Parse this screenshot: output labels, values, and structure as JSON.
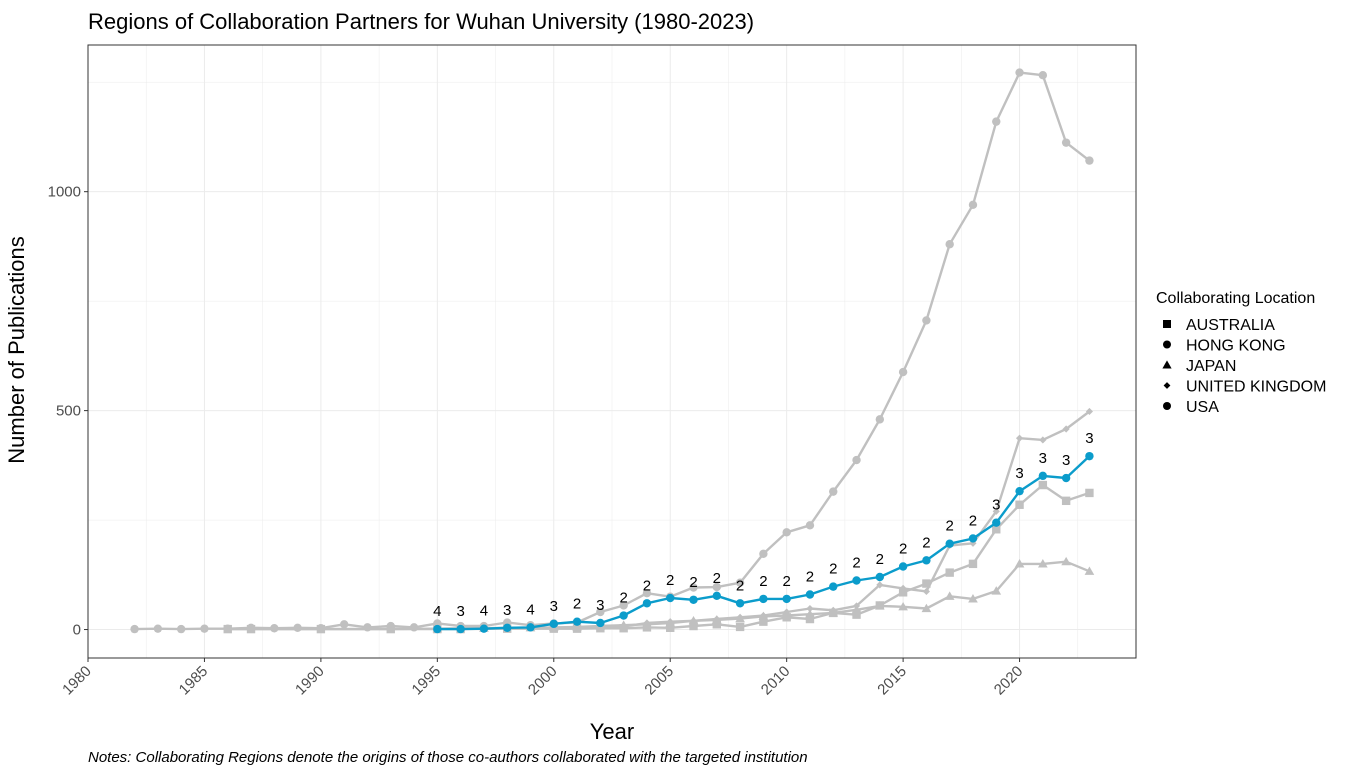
{
  "chart_data": {
    "type": "line",
    "title": "Regions of Collaboration Partners for Wuhan University (1980-2023)",
    "xlabel": "Year",
    "ylabel": "Number of Publications",
    "xlim": [
      1980,
      2025
    ],
    "ylim": [
      -65,
      1335
    ],
    "x_ticks": [
      1980,
      1985,
      1990,
      1995,
      2000,
      2005,
      2010,
      2015,
      2020
    ],
    "y_ticks": [
      0,
      500,
      1000
    ],
    "grid": true,
    "legend_title": "Collaborating Location",
    "legend_placement": "right",
    "note": "Notes: Collaborating Regions denote the origins of those co-authors collaborated with the targeted institution",
    "colors": {
      "highlight": "#0b9ccb",
      "other": "#c0c0c0",
      "grid": "#ebebeb",
      "panel_border": "#333333"
    },
    "series": [
      {
        "name": "USA",
        "marker": "circle",
        "highlight": false,
        "x": [
          1982,
          1983,
          1984,
          1985,
          1986,
          1987,
          1988,
          1989,
          1990,
          1991,
          1992,
          1993,
          1994,
          1995,
          1996,
          1997,
          1998,
          1999,
          2000,
          2001,
          2002,
          2003,
          2004,
          2005,
          2006,
          2007,
          2008,
          2009,
          2010,
          2011,
          2012,
          2013,
          2014,
          2015,
          2016,
          2017,
          2018,
          2019,
          2020,
          2021,
          2022,
          2023
        ],
        "values": [
          1,
          2,
          1,
          2,
          2,
          4,
          3,
          4,
          3,
          12,
          5,
          8,
          5,
          14,
          8,
          8,
          16,
          10,
          14,
          16,
          40,
          55,
          83,
          75,
          96,
          97,
          107,
          173,
          222,
          238,
          315,
          387,
          480,
          588,
          706,
          880,
          970,
          1160,
          1272,
          1266,
          1112,
          1071
        ]
      },
      {
        "name": "UNITED KINGDOM",
        "marker": "diamond",
        "highlight": false,
        "x": [
          1986,
          1988,
          1990,
          1993,
          1995,
          1997,
          1999,
          2001,
          2003,
          2004,
          2005,
          2006,
          2007,
          2008,
          2009,
          2010,
          2011,
          2012,
          2013,
          2014,
          2015,
          2016,
          2017,
          2018,
          2019,
          2020,
          2021,
          2022,
          2023
        ],
        "values": [
          1,
          1,
          1,
          1,
          2,
          3,
          4,
          5,
          7,
          15,
          18,
          20,
          24,
          28,
          32,
          40,
          48,
          44,
          54,
          102,
          94,
          87,
          192,
          197,
          270,
          437,
          433,
          458,
          498
        ]
      },
      {
        "name": "AUSTRALIA",
        "marker": "square",
        "highlight": false,
        "x": [
          1986,
          1987,
          1990,
          1993,
          1995,
          1996,
          1998,
          2000,
          2001,
          2002,
          2003,
          2004,
          2005,
          2006,
          2007,
          2008,
          2009,
          2010,
          2011,
          2012,
          2013,
          2014,
          2015,
          2016,
          2017,
          2018,
          2019,
          2020,
          2021,
          2022,
          2023
        ],
        "values": [
          1,
          1,
          1,
          1,
          1,
          1,
          2,
          2,
          2,
          3,
          3,
          5,
          4,
          8,
          12,
          6,
          18,
          28,
          24,
          38,
          34,
          55,
          85,
          105,
          130,
          150,
          229,
          285,
          330,
          294,
          312
        ]
      },
      {
        "name": "JAPAN",
        "marker": "triangle",
        "highlight": false,
        "x": [
          1995,
          1997,
          1999,
          2000,
          2001,
          2002,
          2003,
          2004,
          2005,
          2006,
          2007,
          2008,
          2009,
          2010,
          2011,
          2012,
          2013,
          2014,
          2015,
          2016,
          2017,
          2018,
          2019,
          2020,
          2021,
          2022,
          2023
        ],
        "values": [
          2,
          3,
          4,
          5,
          6,
          8,
          10,
          12,
          15,
          20,
          22,
          25,
          30,
          32,
          35,
          38,
          45,
          54,
          52,
          48,
          76,
          70,
          88,
          150,
          150,
          155,
          133
        ]
      },
      {
        "name": "HONG KONG",
        "marker": "circle",
        "highlight": true,
        "x": [
          1995,
          1996,
          1997,
          1998,
          1999,
          2000,
          2001,
          2002,
          2003,
          2004,
          2005,
          2006,
          2007,
          2008,
          2009,
          2010,
          2011,
          2012,
          2013,
          2014,
          2015,
          2016,
          2017,
          2018,
          2019,
          2020,
          2021,
          2022,
          2023
        ],
        "values": [
          1,
          1,
          2,
          4,
          5,
          13,
          18,
          15,
          32,
          60,
          72,
          68,
          77,
          60,
          70,
          70,
          80,
          98,
          112,
          120,
          144,
          158,
          196,
          208,
          244,
          316,
          351,
          346,
          396
        ],
        "labels": [
          "4",
          "3",
          "4",
          "3",
          "4",
          "3",
          "2",
          "3",
          "2",
          "2",
          "2",
          "2",
          "2",
          "2",
          "2",
          "2",
          "2",
          "2",
          "2",
          "2",
          "2",
          "2",
          "2",
          "2",
          "3",
          "3",
          "3",
          "3",
          "3"
        ]
      }
    ],
    "legend": [
      {
        "name": "AUSTRALIA",
        "marker": "square"
      },
      {
        "name": "HONG KONG",
        "marker": "circle"
      },
      {
        "name": "JAPAN",
        "marker": "triangle"
      },
      {
        "name": "UNITED KINGDOM",
        "marker": "diamond"
      },
      {
        "name": "USA",
        "marker": "circle"
      }
    ]
  }
}
